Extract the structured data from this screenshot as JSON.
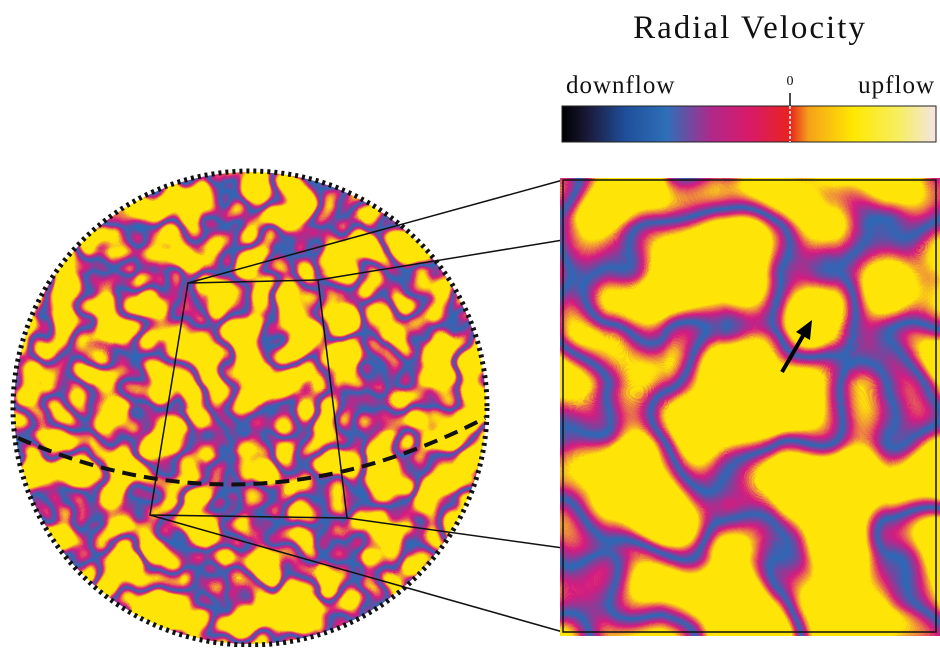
{
  "title": "Radial Velocity",
  "colorbar": {
    "left_label": "downflow",
    "zero_label": "0",
    "right_label": "upflow"
  }
}
